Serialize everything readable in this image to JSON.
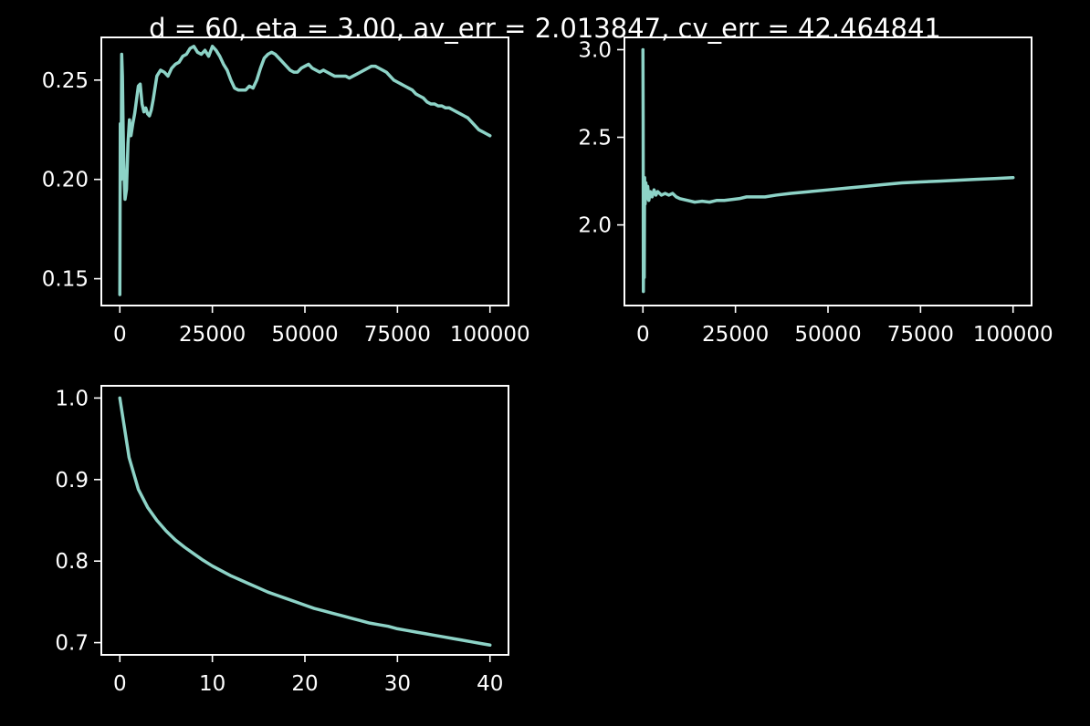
{
  "figure": {
    "title": "d = 60, eta = 3.00, av_err = 2.013847, cv_err = 42.464841",
    "background": "#000000",
    "foreground": "#ffffff",
    "line_color": "#8dd3c7"
  },
  "chart_data": [
    {
      "type": "line",
      "title": "",
      "xlabel": "",
      "ylabel": "",
      "xlim": [
        -5000,
        105000
      ],
      "ylim": [
        0.1365,
        0.2715
      ],
      "xticks": [
        0,
        25000,
        50000,
        75000,
        100000
      ],
      "xtick_labels": [
        "0",
        "25000",
        "50000",
        "75000",
        "100000"
      ],
      "yticks": [
        0.15,
        0.2,
        0.25
      ],
      "ytick_labels": [
        "0.15",
        "0.20",
        "0.25"
      ],
      "grid": false,
      "series": [
        {
          "x": [
            0,
            120,
            220,
            350,
            500,
            700,
            900,
            1100,
            1400,
            1800,
            2200,
            2600,
            3000,
            3500,
            4000,
            4500,
            5000,
            5500,
            6000,
            6500,
            7000,
            7500,
            8000,
            8500,
            9000,
            10000,
            11000,
            12000,
            13000,
            14000,
            15000,
            16000,
            17000,
            18000,
            19000,
            20000,
            21000,
            22000,
            23000,
            24000,
            25000,
            26000,
            27000,
            28000,
            29000,
            30000,
            31000,
            32000,
            33000,
            34000,
            35000,
            36000,
            37000,
            38000,
            39000,
            40000,
            41000,
            42000,
            43000,
            44000,
            45000,
            46000,
            47000,
            48000,
            49000,
            50000,
            51000,
            52000,
            53000,
            54000,
            55000,
            56000,
            57000,
            58000,
            59000,
            60000,
            61000,
            62000,
            63000,
            64000,
            65000,
            66000,
            67000,
            68000,
            69000,
            70000,
            71000,
            72000,
            73000,
            74000,
            75000,
            76000,
            77000,
            78000,
            79000,
            80000,
            81000,
            82000,
            83000,
            84000,
            85000,
            86000,
            87000,
            88000,
            89000,
            90000,
            91000,
            92000,
            93000,
            94000,
            95000,
            96000,
            97000,
            98000,
            99000,
            100000
          ],
          "y": [
            0.142,
            0.228,
            0.215,
            0.2,
            0.263,
            0.252,
            0.225,
            0.205,
            0.19,
            0.195,
            0.218,
            0.23,
            0.222,
            0.228,
            0.233,
            0.24,
            0.247,
            0.248,
            0.238,
            0.234,
            0.236,
            0.233,
            0.232,
            0.235,
            0.24,
            0.252,
            0.255,
            0.254,
            0.252,
            0.256,
            0.258,
            0.259,
            0.262,
            0.263,
            0.266,
            0.267,
            0.264,
            0.263,
            0.265,
            0.262,
            0.267,
            0.265,
            0.262,
            0.258,
            0.255,
            0.25,
            0.246,
            0.245,
            0.245,
            0.245,
            0.247,
            0.246,
            0.25,
            0.256,
            0.261,
            0.263,
            0.264,
            0.263,
            0.261,
            0.259,
            0.257,
            0.255,
            0.254,
            0.254,
            0.256,
            0.257,
            0.258,
            0.256,
            0.255,
            0.254,
            0.255,
            0.254,
            0.253,
            0.252,
            0.252,
            0.252,
            0.252,
            0.251,
            0.252,
            0.253,
            0.254,
            0.255,
            0.256,
            0.257,
            0.257,
            0.256,
            0.255,
            0.254,
            0.252,
            0.25,
            0.249,
            0.248,
            0.247,
            0.246,
            0.245,
            0.243,
            0.242,
            0.241,
            0.239,
            0.238,
            0.238,
            0.237,
            0.237,
            0.236,
            0.236,
            0.235,
            0.234,
            0.233,
            0.232,
            0.231,
            0.229,
            0.227,
            0.225,
            0.224,
            0.223,
            0.222
          ]
        }
      ]
    },
    {
      "type": "line",
      "title": "",
      "xlabel": "",
      "ylabel": "",
      "xlim": [
        -5000,
        105000
      ],
      "ylim": [
        1.54,
        3.07
      ],
      "xticks": [
        0,
        25000,
        50000,
        75000,
        100000
      ],
      "xtick_labels": [
        "0",
        "25000",
        "50000",
        "75000",
        "100000"
      ],
      "yticks": [
        2.0,
        2.5,
        3.0
      ],
      "ytick_labels": [
        "2.0",
        "2.5",
        "3.0"
      ],
      "grid": false,
      "series": [
        {
          "x": [
            0,
            60,
            120,
            180,
            260,
            350,
            450,
            600,
            800,
            1000,
            1300,
            1600,
            2000,
            2500,
            3000,
            3500,
            4000,
            5000,
            6000,
            7000,
            8000,
            9000,
            10000,
            12000,
            14000,
            16000,
            18000,
            20000,
            22000,
            24000,
            26000,
            28000,
            30000,
            33000,
            36000,
            40000,
            45000,
            50000,
            55000,
            60000,
            65000,
            70000,
            75000,
            80000,
            85000,
            90000,
            95000,
            100000
          ],
          "y": [
            3.0,
            2.6,
            1.62,
            1.8,
            2.1,
            1.7,
            2.27,
            2.12,
            2.24,
            2.15,
            2.22,
            2.14,
            2.19,
            2.16,
            2.2,
            2.17,
            2.19,
            2.17,
            2.18,
            2.17,
            2.18,
            2.16,
            2.15,
            2.14,
            2.13,
            2.135,
            2.13,
            2.14,
            2.14,
            2.145,
            2.15,
            2.16,
            2.16,
            2.16,
            2.17,
            2.18,
            2.19,
            2.2,
            2.21,
            2.22,
            2.23,
            2.24,
            2.245,
            2.25,
            2.255,
            2.26,
            2.265,
            2.27
          ]
        }
      ]
    },
    {
      "type": "line",
      "title": "",
      "xlabel": "",
      "ylabel": "",
      "xlim": [
        -2,
        42
      ],
      "ylim": [
        0.685,
        1.015
      ],
      "xticks": [
        0,
        10,
        20,
        30,
        40
      ],
      "xtick_labels": [
        "0",
        "10",
        "20",
        "30",
        "40"
      ],
      "yticks": [
        0.7,
        0.8,
        0.9,
        1.0
      ],
      "ytick_labels": [
        "0.7",
        "0.8",
        "0.9",
        "1.0"
      ],
      "grid": false,
      "series": [
        {
          "x": [
            0,
            1,
            2,
            3,
            4,
            5,
            6,
            7,
            8,
            9,
            10,
            11,
            12,
            13,
            14,
            15,
            16,
            17,
            18,
            19,
            20,
            21,
            22,
            23,
            24,
            25,
            26,
            27,
            28,
            29,
            30,
            31,
            32,
            33,
            34,
            35,
            36,
            37,
            38,
            39,
            40
          ],
          "y": [
            1.0,
            0.927,
            0.888,
            0.866,
            0.85,
            0.837,
            0.826,
            0.817,
            0.809,
            0.801,
            0.794,
            0.788,
            0.782,
            0.777,
            0.772,
            0.767,
            0.762,
            0.758,
            0.754,
            0.75,
            0.746,
            0.742,
            0.739,
            0.736,
            0.733,
            0.73,
            0.727,
            0.724,
            0.722,
            0.72,
            0.717,
            0.715,
            0.713,
            0.711,
            0.709,
            0.707,
            0.705,
            0.703,
            0.701,
            0.699,
            0.697
          ]
        }
      ]
    }
  ]
}
